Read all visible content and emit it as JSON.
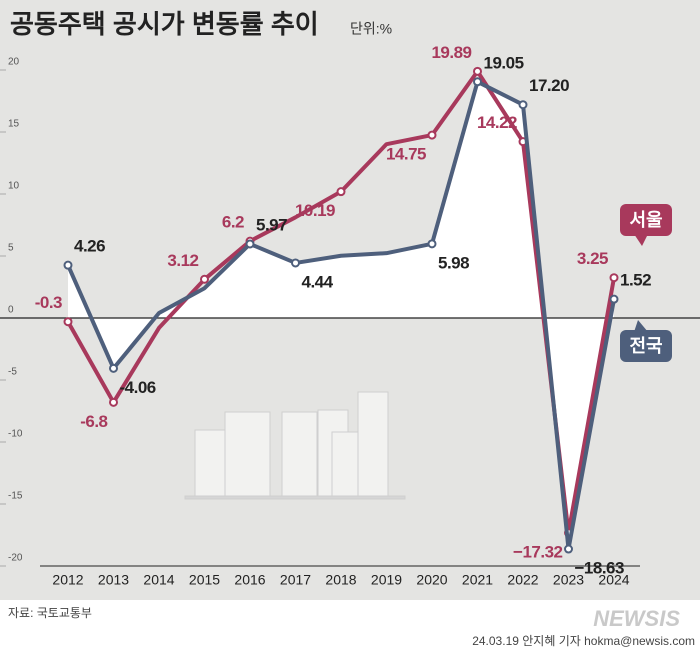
{
  "chart_data": {
    "type": "line",
    "title": "공동주택 공시가 변동률 추이",
    "unit": "단위:%",
    "source": "자료: 국토교통부",
    "credit": "24.03.19 안지혜 기자 hokma@newsis.com",
    "logo": "NEWSIS",
    "categories": [
      "2012",
      "2013",
      "2014",
      "2015",
      "2016",
      "2017",
      "2018",
      "2019",
      "2020",
      "2021",
      "2022",
      "2023",
      "2024"
    ],
    "series": [
      {
        "name": "서울",
        "color": "#a8395c",
        "values": [
          -0.3,
          -6.8,
          -0.8,
          3.12,
          6.2,
          8.12,
          10.19,
          14.02,
          14.75,
          19.89,
          14.22,
          -17.32,
          3.25
        ],
        "value_labels": [
          "-0.3",
          "-6.8",
          null,
          "3.12",
          "6.2",
          null,
          "10.19",
          null,
          "14.75",
          "19.89",
          "14.22",
          "−17.32",
          "3.25"
        ]
      },
      {
        "name": "전국",
        "color": "#4e5f7c",
        "values": [
          4.26,
          -4.06,
          0.4,
          2.4,
          5.97,
          4.44,
          5.02,
          5.23,
          5.98,
          19.05,
          17.2,
          -18.63,
          1.52
        ],
        "value_labels": [
          "4.26",
          "-4.06",
          null,
          null,
          "5.97",
          "4.44",
          null,
          null,
          "5.98",
          "19.05",
          "17.20",
          "−18.63",
          "1.52"
        ]
      }
    ],
    "ylim": [
      -20,
      20
    ],
    "yticks": [
      -20,
      -15,
      -10,
      -5,
      0,
      5,
      10,
      15,
      20
    ]
  }
}
